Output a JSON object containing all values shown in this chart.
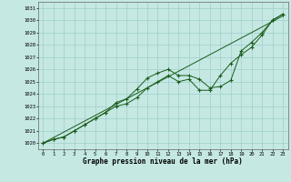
{
  "xlabel": "Graphe pression niveau de la mer (hPa)",
  "x": [
    0,
    1,
    2,
    3,
    4,
    5,
    6,
    7,
    8,
    9,
    10,
    11,
    12,
    13,
    14,
    15,
    16,
    17,
    18,
    19,
    20,
    21,
    22,
    23
  ],
  "line1": [
    1020.0,
    1020.3,
    1020.5,
    1021.0,
    1021.5,
    1022.0,
    1022.5,
    1023.3,
    1023.6,
    1024.4,
    1025.3,
    1025.7,
    1026.0,
    1025.5,
    1025.5,
    1025.2,
    1024.5,
    1024.6,
    1025.1,
    1027.5,
    1028.2,
    1029.0,
    1030.0,
    1030.5
  ],
  "line2": [
    1020.0,
    1020.3,
    1020.5,
    1021.0,
    1021.5,
    1022.0,
    1022.5,
    1023.0,
    1023.2,
    1023.7,
    1024.5,
    1025.0,
    1025.5,
    1025.0,
    1025.2,
    1024.3,
    1024.3,
    1025.5,
    1026.5,
    1027.2,
    1027.8,
    1028.8,
    1030.0,
    1030.5
  ],
  "line3": [
    1020.0,
    1020.45,
    1020.9,
    1021.35,
    1021.8,
    1022.25,
    1022.7,
    1023.15,
    1023.6,
    1024.05,
    1024.5,
    1024.95,
    1025.4,
    1025.85,
    1026.3,
    1026.75,
    1027.2,
    1027.65,
    1028.1,
    1028.55,
    1029.0,
    1029.45,
    1029.9,
    1030.35
  ],
  "ylim": [
    1019.5,
    1031.5
  ],
  "yticks": [
    1020,
    1021,
    1022,
    1023,
    1024,
    1025,
    1026,
    1027,
    1028,
    1029,
    1030,
    1031
  ],
  "bg_color": "#c5e8e3",
  "line_color": "#1a5c1a",
  "grid_color": "#9fcfca"
}
